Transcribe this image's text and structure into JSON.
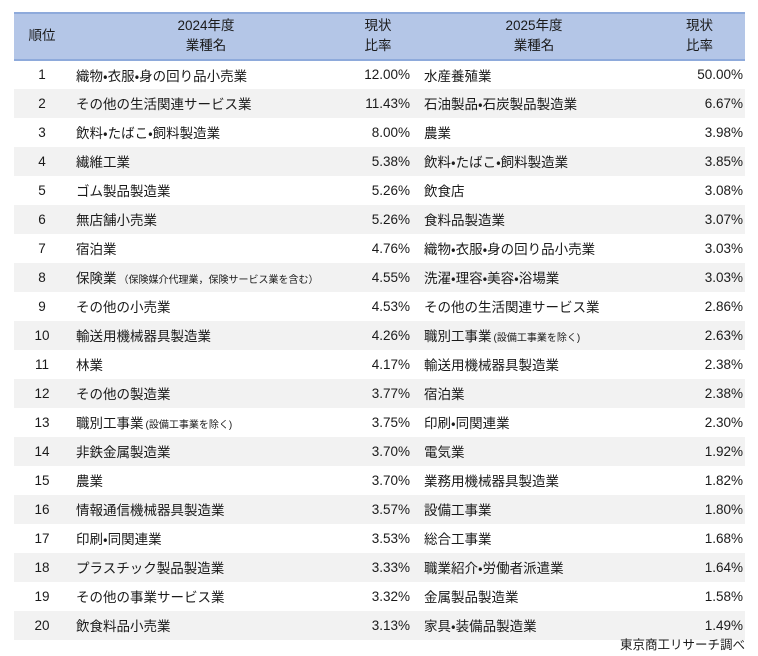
{
  "header": {
    "col_rank": "順位",
    "col_2024_line1": "2024年度",
    "col_2024_line2": "業種名",
    "col_rate_line1": "現状",
    "col_rate_line2": "比率",
    "col_2025_line1": "2025年度",
    "col_2025_line2": "業種名"
  },
  "footer": {
    "source": "東京商工リサーチ調べ"
  },
  "colors": {
    "header_bg": "#B4C6E7",
    "header_border": "#8EAADB",
    "stripe_bg": "#F2F2F2",
    "text": "#1A1A1A"
  },
  "chart_data": {
    "type": "table",
    "columns": [
      "順位",
      "2024年度 業種名",
      "現状比率",
      "2025年度 業種名",
      "現状比率"
    ],
    "rows": [
      {
        "rank": "1",
        "name2024": "織物・衣服・身の回り品小売業",
        "note2024": "",
        "rate2024": "12.00%",
        "name2025": "水産養殖業",
        "note2025": "",
        "rate2025": "50.00%"
      },
      {
        "rank": "2",
        "name2024": "その他の生活関連サービス業",
        "note2024": "",
        "rate2024": "11.43%",
        "name2025": "石油製品・石炭製品製造業",
        "note2025": "",
        "rate2025": "6.67%"
      },
      {
        "rank": "3",
        "name2024": "飲料・たばこ・飼料製造業",
        "note2024": "",
        "rate2024": "8.00%",
        "name2025": "農業",
        "note2025": "",
        "rate2025": "3.98%"
      },
      {
        "rank": "4",
        "name2024": "繊維工業",
        "note2024": "",
        "rate2024": "5.38%",
        "name2025": "飲料・たばこ・飼料製造業",
        "note2025": "",
        "rate2025": "3.85%"
      },
      {
        "rank": "5",
        "name2024": "ゴム製品製造業",
        "note2024": "",
        "rate2024": "5.26%",
        "name2025": "飲食店",
        "note2025": "",
        "rate2025": "3.08%"
      },
      {
        "rank": "6",
        "name2024": "無店舗小売業",
        "note2024": "",
        "rate2024": "5.26%",
        "name2025": "食料品製造業",
        "note2025": "",
        "rate2025": "3.07%"
      },
      {
        "rank": "7",
        "name2024": "宿泊業",
        "note2024": "",
        "rate2024": "4.76%",
        "name2025": "織物・衣服・身の回り品小売業",
        "note2025": "",
        "rate2025": "3.03%"
      },
      {
        "rank": "8",
        "name2024": "保険業",
        "note2024": "（保険媒介代理業，保険サービス業を含む）",
        "rate2024": "4.55%",
        "name2025": "洗濯・理容・美容・浴場業",
        "note2025": "",
        "rate2025": "3.03%"
      },
      {
        "rank": "9",
        "name2024": "その他の小売業",
        "note2024": "",
        "rate2024": "4.53%",
        "name2025": "その他の生活関連サービス業",
        "note2025": "",
        "rate2025": "2.86%"
      },
      {
        "rank": "10",
        "name2024": "輸送用機械器具製造業",
        "note2024": "",
        "rate2024": "4.26%",
        "name2025": "職別工事業",
        "note2025": "(設備工事業を除く)",
        "rate2025": "2.63%"
      },
      {
        "rank": "11",
        "name2024": "林業",
        "note2024": "",
        "rate2024": "4.17%",
        "name2025": "輸送用機械器具製造業",
        "note2025": "",
        "rate2025": "2.38%"
      },
      {
        "rank": "12",
        "name2024": "その他の製造業",
        "note2024": "",
        "rate2024": "3.77%",
        "name2025": "宿泊業",
        "note2025": "",
        "rate2025": "2.38%"
      },
      {
        "rank": "13",
        "name2024": "職別工事業",
        "note2024": "(設備工事業を除く)",
        "rate2024": "3.75%",
        "name2025": "印刷・同関連業",
        "note2025": "",
        "rate2025": "2.30%"
      },
      {
        "rank": "14",
        "name2024": "非鉄金属製造業",
        "note2024": "",
        "rate2024": "3.70%",
        "name2025": "電気業",
        "note2025": "",
        "rate2025": "1.92%"
      },
      {
        "rank": "15",
        "name2024": "農業",
        "note2024": "",
        "rate2024": "3.70%",
        "name2025": "業務用機械器具製造業",
        "note2025": "",
        "rate2025": "1.82%"
      },
      {
        "rank": "16",
        "name2024": "情報通信機械器具製造業",
        "note2024": "",
        "rate2024": "3.57%",
        "name2025": "設備工事業",
        "note2025": "",
        "rate2025": "1.80%"
      },
      {
        "rank": "17",
        "name2024": "印刷・同関連業",
        "note2024": "",
        "rate2024": "3.53%",
        "name2025": "総合工事業",
        "note2025": "",
        "rate2025": "1.68%"
      },
      {
        "rank": "18",
        "name2024": "プラスチック製品製造業",
        "note2024": "",
        "rate2024": "3.33%",
        "name2025": "職業紹介・労働者派遣業",
        "note2025": "",
        "rate2025": "1.64%"
      },
      {
        "rank": "19",
        "name2024": "その他の事業サービス業",
        "note2024": "",
        "rate2024": "3.32%",
        "name2025": "金属製品製造業",
        "note2025": "",
        "rate2025": "1.58%"
      },
      {
        "rank": "20",
        "name2024": "飲食料品小売業",
        "note2024": "",
        "rate2024": "3.13%",
        "name2025": "家具・装備品製造業",
        "note2025": "",
        "rate2025": "1.49%"
      }
    ]
  }
}
